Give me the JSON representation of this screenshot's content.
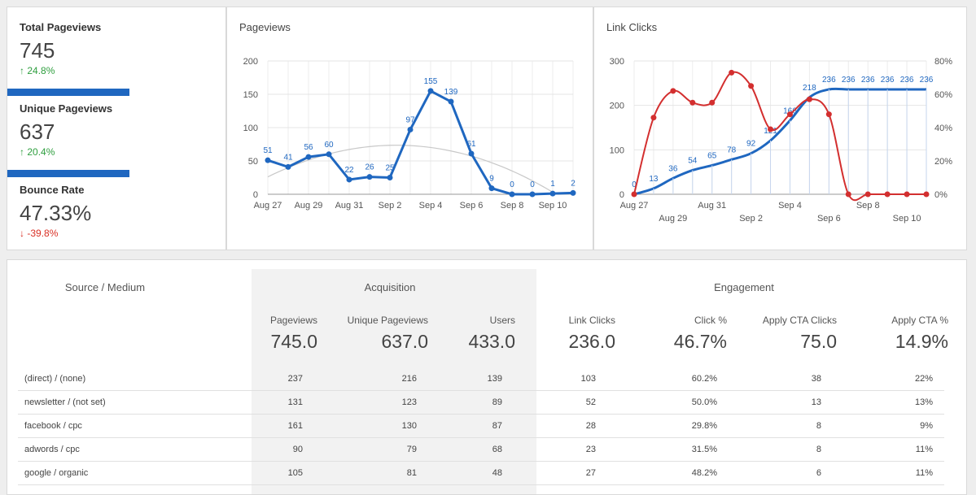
{
  "kpis": [
    {
      "title": "Total Pageviews",
      "value": "745",
      "delta": "24.8%",
      "direction": "up"
    },
    {
      "title": "Unique Pageviews",
      "value": "637",
      "delta": "20.4%",
      "direction": "up"
    },
    {
      "title": "Bounce Rate",
      "value": "47.33%",
      "delta": "-39.8%",
      "direction": "down"
    }
  ],
  "chart_data": [
    {
      "type": "line",
      "title": "Pageviews",
      "x": [
        "Aug 27",
        "Aug 28",
        "Aug 29",
        "Aug 30",
        "Aug 31",
        "Sep 1",
        "Sep 2",
        "Sep 3",
        "Sep 4",
        "Sep 5",
        "Sep 6",
        "Sep 7",
        "Sep 8",
        "Sep 9",
        "Sep 10",
        "Sep 11"
      ],
      "xtick_labels": [
        "Aug 27",
        "Aug 29",
        "Aug 31",
        "Sep 2",
        "Sep 4",
        "Sep 6",
        "Sep 8",
        "Sep 10"
      ],
      "series": [
        {
          "values": [
            51,
            41,
            56,
            60,
            22,
            26,
            25,
            97,
            155,
            139,
            61,
            9,
            0,
            0,
            1,
            2
          ],
          "color": "#1f67c0"
        }
      ],
      "trendline": true,
      "ylim": [
        0,
        200
      ],
      "yticks": [
        0,
        50,
        100,
        150,
        200
      ],
      "grid": true
    },
    {
      "type": "line",
      "title": "Link Clicks",
      "x": [
        "Aug 27",
        "Aug 28",
        "Aug 29",
        "Aug 30",
        "Aug 31",
        "Sep 1",
        "Sep 2",
        "Sep 3",
        "Sep 4",
        "Sep 5",
        "Sep 6",
        "Sep 7",
        "Sep 8",
        "Sep 9",
        "Sep 10",
        "Sep 11"
      ],
      "xtick_labels_top": [
        "Aug 27",
        "Aug 31",
        "Sep 4",
        "Sep 8"
      ],
      "xtick_labels_bottom": [
        "Aug 29",
        "Sep 2",
        "Sep 6",
        "Sep 10"
      ],
      "series": [
        {
          "axis": "left",
          "values": [
            0,
            13,
            36,
            54,
            65,
            78,
            92,
            121,
            166,
            218,
            236,
            236,
            236,
            236,
            236,
            236
          ],
          "color": "#1f67c0",
          "smooth": true,
          "labels": true
        },
        {
          "axis": "right",
          "values": [
            0,
            0.46,
            0.62,
            0.55,
            0.55,
            0.73,
            0.65,
            0.39,
            0.48,
            0.57,
            0.48,
            0,
            0,
            0,
            0,
            0
          ],
          "color": "#d32f2f",
          "smooth": true,
          "labels": false
        }
      ],
      "ylim_left": [
        0,
        300
      ],
      "yticks_left": [
        0,
        100,
        200,
        300
      ],
      "ylim_right": [
        0,
        0.8
      ],
      "yticks_right": [
        "0%",
        "20%",
        "40%",
        "60%",
        "80%"
      ],
      "grid": true
    }
  ],
  "table": {
    "source_header": "Source / Medium",
    "groups": {
      "acquisition": "Acquisition",
      "engagement": "Engagement"
    },
    "columns": [
      "Pageviews",
      "Unique Pageviews",
      "Users",
      "Link Clicks",
      "Click %",
      "Apply CTA Clicks",
      "Apply CTA %"
    ],
    "totals": [
      "745.0",
      "637.0",
      "433.0",
      "236.0",
      "46.7%",
      "75.0",
      "14.9%"
    ],
    "rows": [
      {
        "source": "(direct) / (none)",
        "values": [
          "237",
          "216",
          "139",
          "103",
          "60.2%",
          "38",
          "22%"
        ]
      },
      {
        "source": "newsletter / (not set)",
        "values": [
          "131",
          "123",
          "89",
          "52",
          "50.0%",
          "13",
          "13%"
        ]
      },
      {
        "source": "facebook / cpc",
        "values": [
          "161",
          "130",
          "87",
          "28",
          "29.8%",
          "8",
          "9%"
        ]
      },
      {
        "source": "adwords / cpc",
        "values": [
          "90",
          "79",
          "68",
          "23",
          "31.5%",
          "8",
          "11%"
        ]
      },
      {
        "source": "google / organic",
        "values": [
          "105",
          "81",
          "48",
          "27",
          "48.2%",
          "6",
          "11%"
        ]
      }
    ]
  }
}
